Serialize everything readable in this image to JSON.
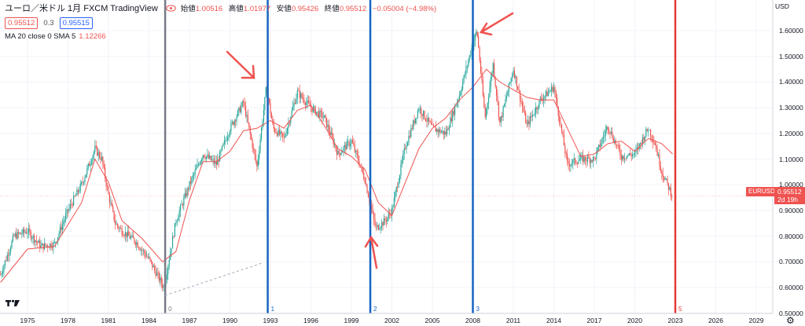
{
  "header": {
    "symbol_title": "ユーロ／米ドル  1月  FXCM  TradingView",
    "ohlc": [
      {
        "label": "始値",
        "value": "1.00516"
      },
      {
        "label": "高値",
        "value": "1.01977"
      },
      {
        "label": "安値",
        "value": "0.95426"
      },
      {
        "label": "終値",
        "value": "0.95512"
      },
      {
        "label": "",
        "value": "−0.05004 (−4.98%)"
      }
    ],
    "sell_price": "0.95512",
    "spread": "0.3",
    "buy_price": "0.95515",
    "indicator_label": "MA 20 close 0 SMA 5",
    "indicator_value": "1.12266"
  },
  "price_axis": {
    "currency": "USD",
    "labels": [
      "1.60000",
      "1.50000",
      "1.40000",
      "1.30000",
      "1.20000",
      "1.10000",
      "1.00000",
      "0.90000",
      "0.80000",
      "0.70000",
      "0.60000",
      "0.50000"
    ],
    "last_symbol": "EURUSD",
    "last_price": "0.95512",
    "countdown": "2d 19h"
  },
  "time_axis": {
    "labels": [
      "1975",
      "1978",
      "1981",
      "1984",
      "1987",
      "1990",
      "1993",
      "1996",
      "1999",
      "2002",
      "2005",
      "2008",
      "2011",
      "2014",
      "2017",
      "2020",
      "2023",
      "2026",
      "2029"
    ]
  },
  "vertical_markers": [
    {
      "label": "0",
      "color": "#787b86",
      "year": 1985.2
    },
    {
      "label": "1",
      "color": "#1565c0",
      "year": 1992.8
    },
    {
      "label": "2",
      "color": "#1565c0",
      "year": 2000.4
    },
    {
      "label": "3",
      "color": "#1565c0",
      "year": 2008.0
    },
    {
      "label": "5",
      "color": "#e53935",
      "year": 2023.0
    }
  ],
  "colors": {
    "up": "#26a69a",
    "down": "#ef5350",
    "ma": "#ef5350",
    "marker_blue": "#1565c0",
    "marker_gray": "#787b86",
    "marker_red": "#e53935",
    "arrow": "#ef5350",
    "grid": "#f0f3fa"
  },
  "chart_data": {
    "type": "line",
    "x_range": [
      1973,
      2031
    ],
    "ylim": [
      0.47,
      1.66
    ],
    "series": [
      {
        "values": [
          [
            1973.0,
            0.65
          ],
          [
            1974.0,
            0.8
          ],
          [
            1975.0,
            0.82
          ],
          [
            1976.0,
            0.76
          ],
          [
            1977.0,
            0.77
          ],
          [
            1978.0,
            0.9
          ],
          [
            1979.0,
            1.0
          ],
          [
            1980.0,
            1.14
          ],
          [
            1980.5,
            1.1
          ],
          [
            1981.0,
            0.96
          ],
          [
            1981.5,
            0.85
          ],
          [
            1982.0,
            0.82
          ],
          [
            1983.0,
            0.78
          ],
          [
            1984.0,
            0.71
          ],
          [
            1985.1,
            0.6
          ],
          [
            1986.0,
            0.86
          ],
          [
            1987.0,
            1.0
          ],
          [
            1988.0,
            1.12
          ],
          [
            1989.0,
            1.08
          ],
          [
            1990.0,
            1.22
          ],
          [
            1991.0,
            1.32
          ],
          [
            1992.0,
            1.07
          ],
          [
            1992.7,
            1.38
          ],
          [
            1993.2,
            1.22
          ],
          [
            1994.0,
            1.18
          ],
          [
            1995.0,
            1.36
          ],
          [
            1996.0,
            1.3
          ],
          [
            1997.0,
            1.26
          ],
          [
            1998.0,
            1.12
          ],
          [
            1999.0,
            1.17
          ],
          [
            2000.0,
            1.02
          ],
          [
            2000.8,
            0.83
          ],
          [
            2001.5,
            0.86
          ],
          [
            2002.0,
            0.9
          ],
          [
            2003.0,
            1.15
          ],
          [
            2004.0,
            1.3
          ],
          [
            2005.0,
            1.22
          ],
          [
            2006.0,
            1.2
          ],
          [
            2007.0,
            1.35
          ],
          [
            2008.0,
            1.55
          ],
          [
            2008.3,
            1.6
          ],
          [
            2008.9,
            1.26
          ],
          [
            2009.5,
            1.47
          ],
          [
            2010.0,
            1.24
          ],
          [
            2011.0,
            1.45
          ],
          [
            2012.0,
            1.23
          ],
          [
            2013.0,
            1.33
          ],
          [
            2014.0,
            1.38
          ],
          [
            2015.0,
            1.08
          ],
          [
            2016.0,
            1.1
          ],
          [
            2017.0,
            1.1
          ],
          [
            2018.0,
            1.23
          ],
          [
            2019.0,
            1.11
          ],
          [
            2020.0,
            1.12
          ],
          [
            2021.0,
            1.22
          ],
          [
            2021.5,
            1.16
          ],
          [
            2022.0,
            1.05
          ],
          [
            2022.8,
            0.955
          ]
        ]
      },
      {
        "name": "MA 20 close 0 SMA 5",
        "values": [
          [
            1973.0,
            0.62
          ],
          [
            1975.0,
            0.75
          ],
          [
            1977.0,
            0.76
          ],
          [
            1979.0,
            0.93
          ],
          [
            1980.0,
            1.1
          ],
          [
            1981.0,
            1.01
          ],
          [
            1982.0,
            0.86
          ],
          [
            1983.5,
            0.79
          ],
          [
            1985.0,
            0.7
          ],
          [
            1986.0,
            0.74
          ],
          [
            1987.0,
            0.94
          ],
          [
            1988.0,
            1.09
          ],
          [
            1989.0,
            1.09
          ],
          [
            1990.0,
            1.13
          ],
          [
            1991.0,
            1.21
          ],
          [
            1992.0,
            1.22
          ],
          [
            1993.0,
            1.25
          ],
          [
            1994.0,
            1.22
          ],
          [
            1995.0,
            1.29
          ],
          [
            1996.0,
            1.31
          ],
          [
            1997.0,
            1.23
          ],
          [
            1998.0,
            1.14
          ],
          [
            1999.0,
            1.11
          ],
          [
            2000.0,
            1.06
          ],
          [
            2001.0,
            0.93
          ],
          [
            2002.0,
            0.88
          ],
          [
            2003.0,
            1.01
          ],
          [
            2004.0,
            1.14
          ],
          [
            2005.0,
            1.22
          ],
          [
            2006.0,
            1.26
          ],
          [
            2007.0,
            1.33
          ],
          [
            2008.0,
            1.38
          ],
          [
            2009.0,
            1.45
          ],
          [
            2010.0,
            1.4
          ],
          [
            2011.0,
            1.37
          ],
          [
            2012.0,
            1.34
          ],
          [
            2013.0,
            1.33
          ],
          [
            2014.0,
            1.33
          ],
          [
            2015.0,
            1.22
          ],
          [
            2016.0,
            1.11
          ],
          [
            2017.0,
            1.12
          ],
          [
            2018.0,
            1.16
          ],
          [
            2019.0,
            1.17
          ],
          [
            2020.0,
            1.13
          ],
          [
            2021.0,
            1.18
          ],
          [
            2022.0,
            1.16
          ],
          [
            2022.8,
            1.12
          ]
        ]
      }
    ]
  }
}
